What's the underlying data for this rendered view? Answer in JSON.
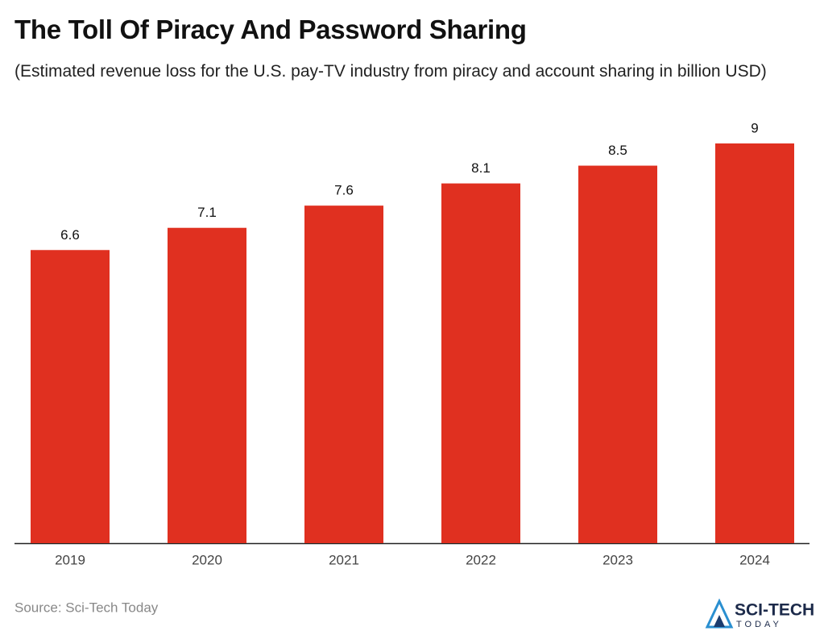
{
  "chart_data": {
    "type": "bar",
    "title": "The Toll Of Piracy And Password Sharing",
    "subtitle": "(Estimated revenue loss for the U.S. pay-TV industry from piracy and account sharing in billion USD)",
    "categories": [
      "2019",
      "2020",
      "2021",
      "2022",
      "2023",
      "2024"
    ],
    "values": [
      6.6,
      7.1,
      7.6,
      8.1,
      8.5,
      9
    ],
    "color": "#e03020",
    "source": "Source: Sci-Tech Today",
    "logo": {
      "top": "SCI-TECH",
      "bottom": "TODAY"
    }
  }
}
